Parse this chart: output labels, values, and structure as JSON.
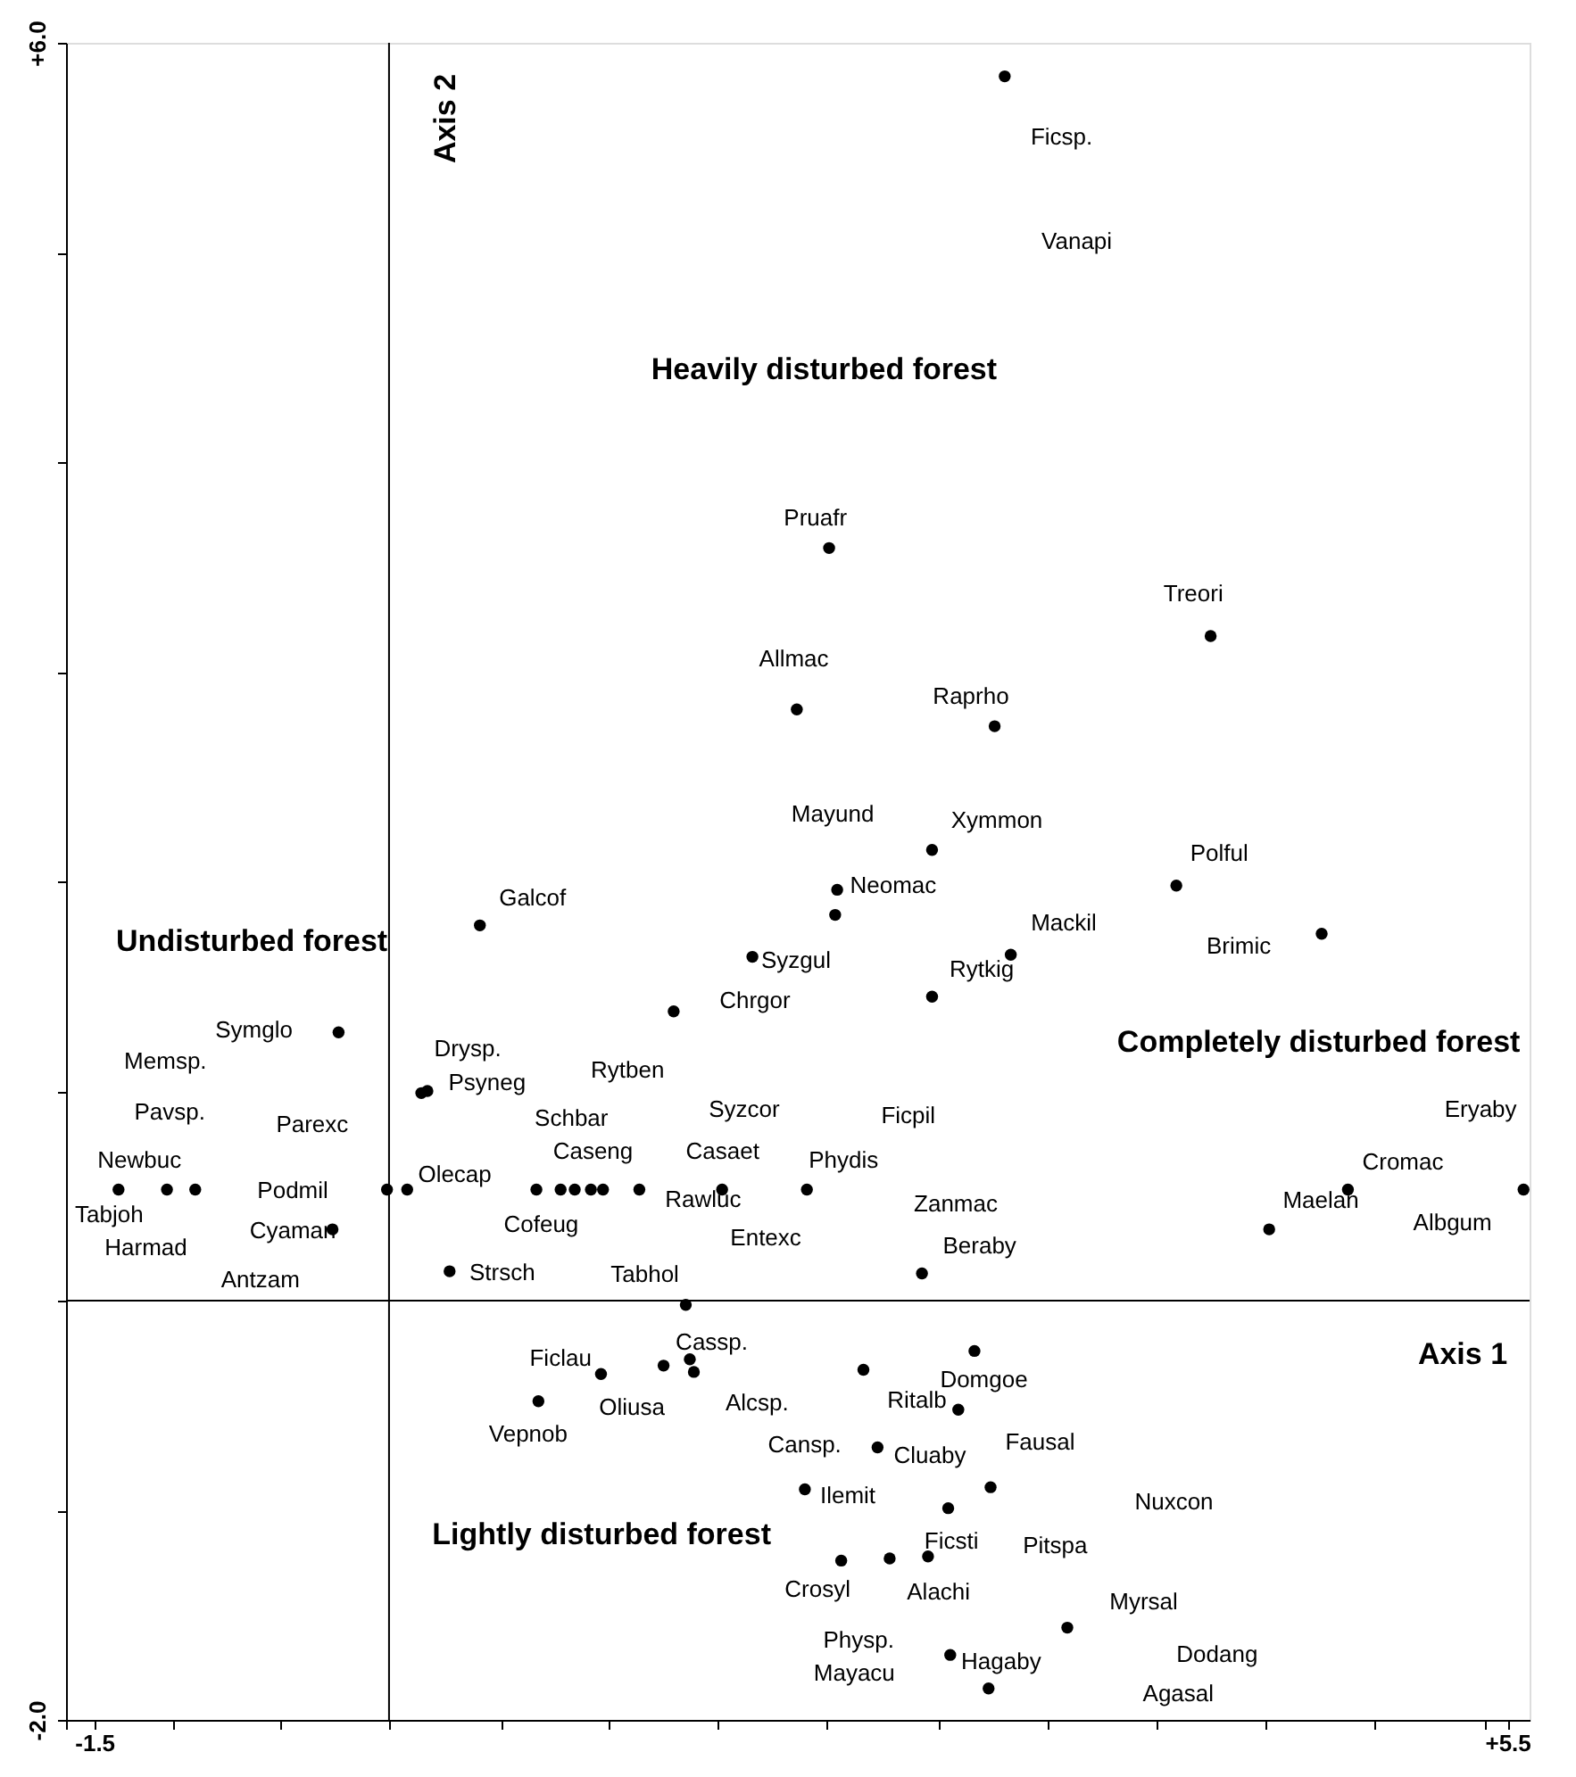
{
  "chart_data": {
    "type": "scatter",
    "xlabel": "Axis 1",
    "ylabel": "Axis 2",
    "x": [
      3.01,
      2.14,
      4.03,
      1.98,
      2.96,
      2.65,
      2.18,
      2.17,
      3.86,
      4.58,
      3.04,
      2.65,
      2.6,
      4.32,
      4.71,
      5.58,
      0.41,
      1.76,
      1.37,
      -0.29,
      0.12,
      0.15,
      -1.38,
      -1.14,
      -1.0,
      -0.05,
      0.05,
      0.69,
      0.81,
      0.88,
      0.96,
      1.02,
      1.2,
      1.61,
      2.03,
      -0.32,
      0.26,
      1.43,
      1.45,
      1.47,
      1.32,
      1.01,
      0.7,
      2.02,
      2.86,
      2.31,
      2.78,
      2.38,
      2.94,
      2.73,
      2.2,
      2.44,
      2.63,
      3.32,
      2.74,
      2.93
    ],
    "series": [
      {
        "color": "#000000",
        "values": [
          5.84,
          3.59,
          3.17,
          2.82,
          2.74,
          2.15,
          1.96,
          1.84,
          1.98,
          1.75,
          1.65,
          1.45,
          0.13,
          0.34,
          0.53,
          0.53,
          1.79,
          1.64,
          1.38,
          1.28,
          0.99,
          1.0,
          0.53,
          0.53,
          0.53,
          0.53,
          0.53,
          0.53,
          0.53,
          0.53,
          0.53,
          0.53,
          0.53,
          0.53,
          0.53,
          0.34,
          0.14,
          -0.02,
          -0.28,
          -0.34,
          -0.31,
          -0.35,
          -0.48,
          -0.9,
          -0.24,
          -0.33,
          -0.52,
          -0.7,
          -0.89,
          -0.99,
          -1.24,
          -1.23,
          -1.22,
          -1.56,
          -1.69,
          -1.85
        ]
      }
    ],
    "marker": "circle",
    "xlim": [
      -1.64,
      5.61
    ],
    "xticks": [
      {
        "value": -1.64,
        "label": null
      },
      -1.5,
      {
        "value": -1.11,
        "label": null
      },
      {
        "value": -0.58,
        "label": null
      },
      {
        "value": -0.04,
        "label": null
      },
      {
        "value": 0.52,
        "label": null
      },
      {
        "value": 1.05,
        "label": null
      },
      {
        "value": 1.59,
        "label": null
      },
      {
        "value": 2.13,
        "label": null
      },
      {
        "value": 2.68,
        "label": null
      },
      {
        "value": 3.22,
        "label": null
      },
      {
        "value": 3.76,
        "label": null
      },
      {
        "value": 4.3,
        "label": null
      },
      {
        "value": 4.84,
        "label": null
      },
      {
        "value": 5.39,
        "label": null
      },
      {
        "value": 5.5,
        "label": "+5.5"
      }
    ],
    "ylim": [
      -2.0,
      6.0
    ],
    "yticks": [
      {
        "value": -2.0,
        "label": "-2.0"
      },
      {
        "value": -1,
        "label": null
      },
      {
        "value": 0,
        "label": null
      },
      {
        "value": 1,
        "label": null
      },
      {
        "value": 2,
        "label": null
      },
      {
        "value": 3,
        "label": null
      },
      {
        "value": 4,
        "label": null
      },
      {
        "value": 5,
        "label": null
      },
      {
        "value": 6.0,
        "label": "+6.0"
      }
    ],
    "ref_lines": [
      {
        "axis": "x",
        "value": -0.04,
        "color": "#000000"
      },
      {
        "axis": "y",
        "value": 0,
        "color": "#000000"
      }
    ],
    "annotations": [
      "Heavily disturbed forest",
      "Undisturbed forest",
      "Completely disturbed forest",
      "Lightly disturbed forest",
      "Ficsp.",
      "Vanapi",
      "Pruafr",
      "Treori",
      "Allmac",
      "Raprho",
      "Mayund",
      "Xymmon",
      "Neomac",
      "Polful",
      "Galcof",
      "Syzgul",
      "Mackil",
      "Brimic",
      "Rytkig",
      "Chrgor",
      "Symglo",
      "Memsp.",
      "Drysp.",
      "Psyneg",
      "Rytben",
      "Pavsp.",
      "Parexc",
      "Schbar",
      "Syzcor",
      "Ficpil",
      "Eryaby",
      "Caseng",
      "Casaet",
      "Phydis",
      "Cromac",
      "Newbuc",
      "Olecap",
      "Podmil",
      "Zanmac",
      "Maelan",
      "Albgum",
      "Rawluc",
      "Tabjoh",
      "Cofeug",
      "Cyaman",
      "Entexc",
      "Beraby",
      "Harmad",
      "Strsch",
      "Tabhol",
      "Antzam",
      "Cassp.",
      "Domgoe",
      "Ficlau",
      "Oliusa",
      "Alcsp.",
      "Ritalb",
      "Vepnob",
      "Cansp.",
      "Cluaby",
      "Fausal",
      "Ilemit",
      "Nuxcon",
      "Ficsti",
      "Pitspa",
      "Crosyl",
      "Alachi",
      "Myrsal",
      "Physp.",
      "Dodang",
      "Hagaby",
      "Mayacu",
      "Agasal"
    ]
  }
}
